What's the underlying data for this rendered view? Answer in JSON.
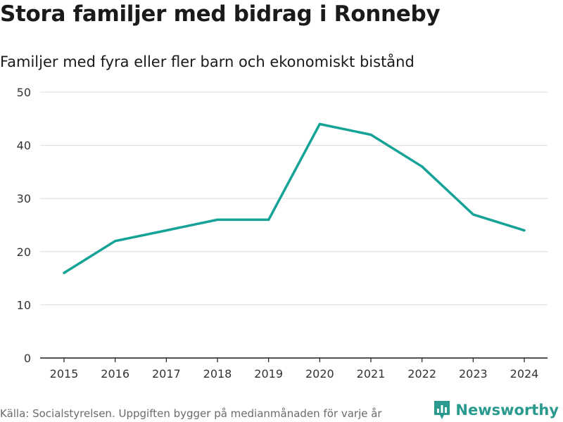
{
  "title": "Stora familjer med bidrag i Ronneby",
  "subtitle": "Familjer med fyra eller fler barn och ekonomiskt bistånd",
  "source": "Källa: Socialstyrelsen. Uppgiften bygger på medianmånaden för varje år",
  "brand": {
    "name": "Newsworthy",
    "color": "#2a9a8f"
  },
  "chart_data": {
    "type": "line",
    "title": "Stora familjer med bidrag i Ronneby",
    "subtitle": "Familjer med fyra eller fler barn och ekonomiskt bistånd",
    "xlabel": "",
    "ylabel": "",
    "categories": [
      "2015",
      "2016",
      "2017",
      "2018",
      "2019",
      "2020",
      "2021",
      "2022",
      "2023",
      "2024"
    ],
    "series": [
      {
        "name": "Familjer",
        "values": [
          16,
          22,
          24,
          26,
          26,
          44,
          42,
          36,
          27,
          24
        ],
        "color": "#15a297"
      }
    ],
    "ylim": [
      0,
      50
    ],
    "yticks": [
      0,
      10,
      20,
      30,
      40,
      50
    ],
    "grid": true
  }
}
